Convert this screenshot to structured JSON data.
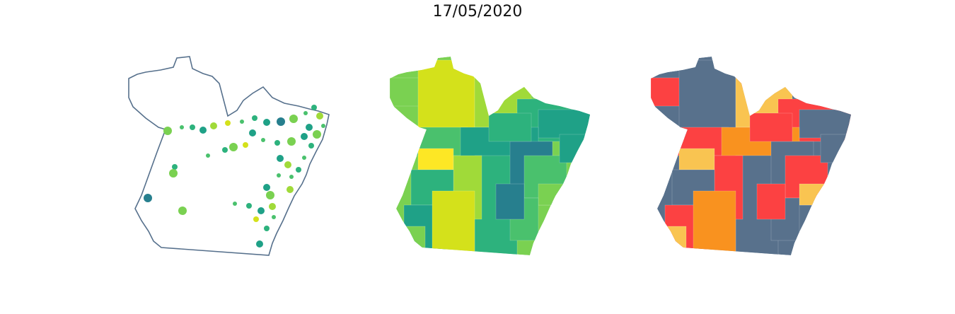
{
  "figure": {
    "title": "17/05/2020"
  },
  "colors": {
    "outline": "#56708c",
    "viridis": [
      "#fde725",
      "#d4e11b",
      "#a0da39",
      "#7ad151",
      "#4ac16d",
      "#2db27d",
      "#1fa187",
      "#277f8e",
      "#365c8d",
      "#46327e"
    ],
    "category": [
      "#fc4142",
      "#58718c",
      "#f9c451",
      "#f9921f"
    ]
  },
  "panels": [
    {
      "kind": "outline-with-points",
      "point_levels": [
        3,
        4,
        5,
        6,
        2,
        1,
        4,
        5,
        6,
        7,
        3,
        4,
        5,
        2,
        4,
        6,
        3,
        5,
        4,
        6,
        1,
        3,
        5,
        4,
        6,
        2,
        4,
        5,
        3,
        6
      ]
    },
    {
      "kind": "choropleth-continuous",
      "region_levels": [
        3,
        1,
        2,
        5,
        6,
        4,
        0,
        6,
        5,
        2,
        7,
        4,
        3,
        5,
        6,
        1,
        4,
        5,
        6,
        7,
        3
      ]
    },
    {
      "kind": "choropleth-categorical",
      "region_levels": [
        0,
        1,
        2,
        0,
        1,
        0,
        2,
        3,
        1,
        0,
        1,
        0,
        2,
        1,
        0,
        3,
        1,
        0,
        1,
        0,
        2
      ]
    }
  ]
}
